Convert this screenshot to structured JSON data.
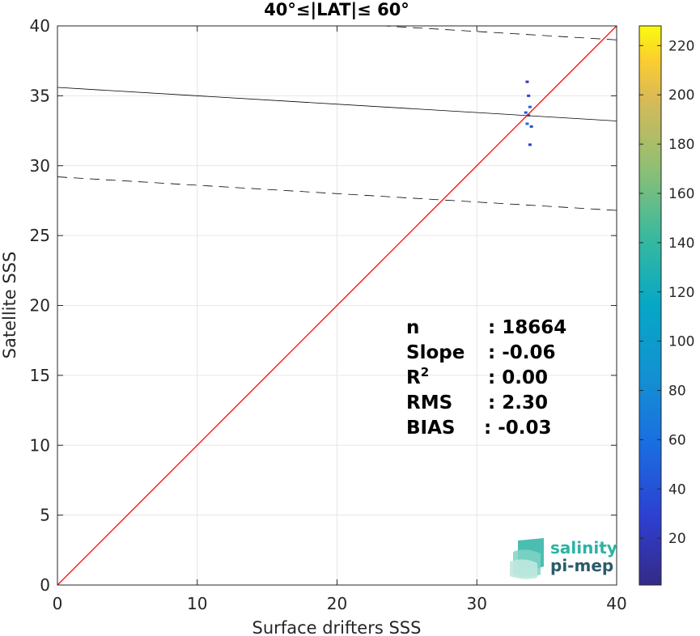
{
  "chart_data": {
    "type": "scatter",
    "title": "40°≤|LAT|≤ 60°",
    "xlabel": "Surface drifters SSS",
    "ylabel": "Satellite SSS",
    "xlim": [
      0,
      40
    ],
    "ylim": [
      0,
      40
    ],
    "xticks": [
      0,
      10,
      20,
      30,
      40
    ],
    "yticks": [
      0,
      5,
      10,
      15,
      20,
      25,
      30,
      35,
      40
    ],
    "grid": true,
    "colorbar": {
      "range": [
        1,
        228
      ],
      "ticks": [
        20,
        40,
        60,
        80,
        100,
        120,
        140,
        160,
        180,
        200,
        220
      ],
      "colormap": "parula"
    },
    "reference_line": {
      "slope": 1,
      "intercept": 0,
      "color": "#ff0000"
    },
    "fit_line": {
      "slope": -0.06,
      "intercept": 35.6,
      "color": "#000000"
    },
    "confidence_lines": [
      {
        "slope": -0.06,
        "intercept": 41.4,
        "style": "dashed"
      },
      {
        "slope": -0.06,
        "intercept": 29.2,
        "style": "dashed"
      }
    ],
    "density_cells": [
      {
        "x": 33.7,
        "y": 33.6,
        "count": 80
      },
      {
        "x": 33.8,
        "y": 34.2,
        "count": 55
      },
      {
        "x": 33.6,
        "y": 33.0,
        "count": 60
      },
      {
        "x": 33.5,
        "y": 33.8,
        "count": 45
      },
      {
        "x": 33.9,
        "y": 32.8,
        "count": 35
      },
      {
        "x": 33.7,
        "y": 35.0,
        "count": 30
      },
      {
        "x": 33.8,
        "y": 31.5,
        "count": 25
      },
      {
        "x": 33.6,
        "y": 36.0,
        "count": 20
      }
    ],
    "stats": [
      {
        "label": "n",
        "value": ": 18664"
      },
      {
        "label": "Slope",
        "value": ": -0.06"
      },
      {
        "label": "R",
        "sup": "2",
        "value": ": 0.00"
      },
      {
        "label": "RMS",
        "value": ": 2.30"
      },
      {
        "label": "BIAS",
        "value": ": -0.03"
      }
    ]
  },
  "logo": {
    "line1": "salinity",
    "line2": "pi-mep",
    "color1": "#2bb3a3",
    "color2": "#2b5c6b"
  }
}
